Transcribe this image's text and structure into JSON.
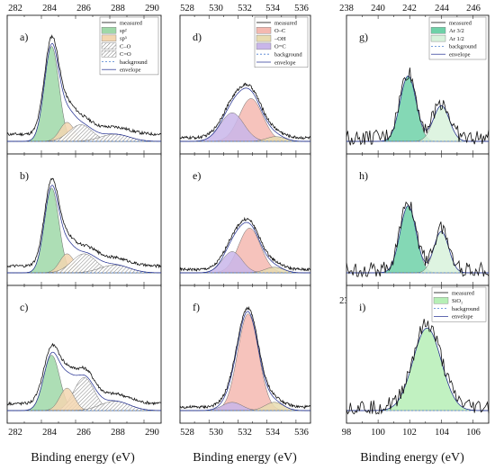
{
  "xlabel": "Binding energy (eV)",
  "columns": [
    {
      "ticks": [
        282,
        284,
        286,
        288,
        290
      ],
      "xlim": [
        282,
        291
      ]
    },
    {
      "ticks": [
        528,
        530,
        532,
        534,
        536
      ],
      "xlim": [
        528,
        537
      ]
    },
    {
      "ticks": [
        238,
        240,
        242,
        244,
        246
      ],
      "xlim": [
        238,
        247
      ],
      "ticks_bottom_alt": [
        98,
        100,
        102,
        104,
        106
      ],
      "xlim_bottom_alt": [
        98,
        107
      ]
    }
  ],
  "chart_data": [
    {
      "label": "a)",
      "type": "area",
      "xlim": [
        282,
        291
      ],
      "legend": [
        "measured",
        "sp²",
        "sp³",
        "C–O",
        "C=O",
        "background",
        "envelope"
      ],
      "peaks": [
        {
          "name": "sp²",
          "center": 284.6,
          "height": 0.8,
          "fwhm": 1.0,
          "color": "#9fd8a8"
        },
        {
          "name": "sp³",
          "center": 285.5,
          "height": 0.16,
          "fwhm": 1.0,
          "color": "#f3d6b0"
        },
        {
          "name": "C–O",
          "center": 286.3,
          "height": 0.14,
          "fwhm": 1.6,
          "color": "hatch"
        },
        {
          "name": "C=O",
          "center": 288.3,
          "height": 0.06,
          "fwhm": 2.0,
          "color": "hatch"
        }
      ]
    },
    {
      "label": "d)",
      "type": "area",
      "xlim": [
        528,
        537
      ],
      "legend": [
        "measured",
        "O–C",
        "–OH",
        "O=C",
        "background",
        "envelope"
      ],
      "peaks": [
        {
          "name": "O–C",
          "center": 532.9,
          "height": 0.36,
          "fwhm": 1.9,
          "color": "#f4b9b0"
        },
        {
          "name": "O=C",
          "center": 531.6,
          "height": 0.24,
          "fwhm": 1.9,
          "color": "#c9b6ea"
        },
        {
          "name": "–OH",
          "center": 534.6,
          "height": 0.04,
          "fwhm": 1.5,
          "color": "#e8dcb0"
        }
      ]
    },
    {
      "label": "g)",
      "type": "area",
      "xlim": [
        238,
        247
      ],
      "legend": [
        "measured",
        "Ar 3/2",
        "Ar 1/2",
        "background",
        "envelope"
      ],
      "peaks": [
        {
          "name": "Ar 3/2",
          "center": 241.9,
          "height": 0.55,
          "fwhm": 1.2,
          "color": "#6fd1a8"
        },
        {
          "name": "Ar 1/2",
          "center": 244.0,
          "height": 0.3,
          "fwhm": 1.2,
          "color": "#d8f2dc"
        }
      ]
    },
    {
      "label": "b)",
      "type": "area",
      "xlim": [
        282,
        291
      ],
      "peaks": [
        {
          "name": "sp²",
          "center": 284.6,
          "height": 0.76,
          "fwhm": 1.0,
          "color": "#9fd8a8"
        },
        {
          "name": "sp³",
          "center": 285.5,
          "height": 0.17,
          "fwhm": 1.0,
          "color": "#f3d6b0"
        },
        {
          "name": "C–O",
          "center": 286.5,
          "height": 0.17,
          "fwhm": 1.7,
          "color": "hatch"
        },
        {
          "name": "C=O",
          "center": 288.3,
          "height": 0.07,
          "fwhm": 2.0,
          "color": "hatch"
        }
      ]
    },
    {
      "label": "e)",
      "type": "area",
      "xlim": [
        528,
        537
      ],
      "peaks": [
        {
          "name": "O–C",
          "center": 532.8,
          "height": 0.4,
          "fwhm": 1.8,
          "color": "#f4b9b0"
        },
        {
          "name": "O=C",
          "center": 531.6,
          "height": 0.19,
          "fwhm": 1.6,
          "color": "#c9b6ea"
        },
        {
          "name": "–OH",
          "center": 534.5,
          "height": 0.05,
          "fwhm": 1.5,
          "color": "#e8dcb0"
        }
      ]
    },
    {
      "label": "h)",
      "type": "area",
      "xlim": [
        238,
        247
      ],
      "peaks": [
        {
          "name": "Ar 3/2",
          "center": 241.9,
          "height": 0.6,
          "fwhm": 1.2,
          "color": "#6fd1a8"
        },
        {
          "name": "Ar 1/2",
          "center": 244.0,
          "height": 0.37,
          "fwhm": 1.1,
          "color": "#d8f2dc"
        }
      ]
    },
    {
      "label": "c)",
      "type": "area",
      "xlim": [
        282,
        291
      ],
      "peaks": [
        {
          "name": "sp²",
          "center": 284.6,
          "height": 0.47,
          "fwhm": 1.1,
          "color": "#9fd8a8"
        },
        {
          "name": "sp³",
          "center": 285.5,
          "height": 0.19,
          "fwhm": 1.0,
          "color": "#f3d6b0"
        },
        {
          "name": "C–O",
          "center": 286.5,
          "height": 0.28,
          "fwhm": 1.4,
          "color": "hatch"
        },
        {
          "name": "C=O",
          "center": 288.3,
          "height": 0.08,
          "fwhm": 2.0,
          "color": "hatch"
        }
      ]
    },
    {
      "label": "f)",
      "type": "area",
      "xlim": [
        528,
        537
      ],
      "peaks": [
        {
          "name": "O–C",
          "center": 532.7,
          "height": 0.82,
          "fwhm": 1.7,
          "color": "#f4b9b0"
        },
        {
          "name": "O=C",
          "center": 531.6,
          "height": 0.07,
          "fwhm": 1.6,
          "color": "#c9b6ea"
        },
        {
          "name": "–OH",
          "center": 534.5,
          "height": 0.07,
          "fwhm": 1.5,
          "color": "#e8dcb0"
        }
      ]
    },
    {
      "label": "i)",
      "type": "area",
      "xlim": [
        98,
        107
      ],
      "legend": [
        "measured",
        "SiO₂",
        "background",
        "envelope"
      ],
      "peaks": [
        {
          "name": "SiO₂",
          "center": 103.1,
          "height": 0.7,
          "fwhm": 2.1,
          "color": "#b6efb6"
        }
      ]
    }
  ]
}
